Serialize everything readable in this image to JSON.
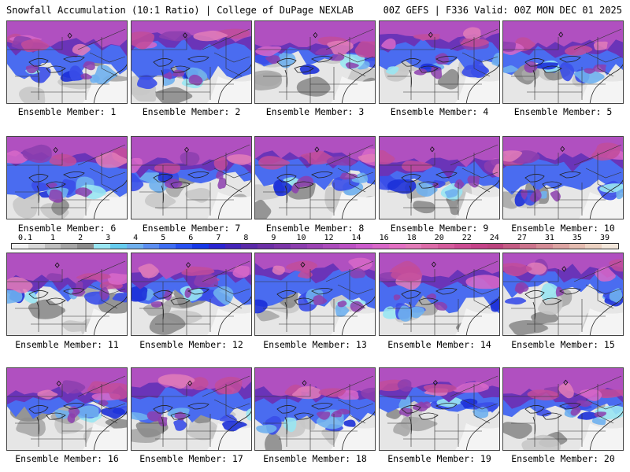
{
  "header": {
    "title_left": "Snowfall Accumulation (10:1 Ratio) | College of DuPage NEXLAB",
    "title_right": "00Z GEFS | F336 Valid: 00Z MON DEC 01 2025"
  },
  "members": [
    {
      "label": "Ensemble Member: 1"
    },
    {
      "label": "Ensemble Member: 2"
    },
    {
      "label": "Ensemble Member: 3"
    },
    {
      "label": "Ensemble Member: 4"
    },
    {
      "label": "Ensemble Member: 5"
    },
    {
      "label": "Ensemble Member: 6"
    },
    {
      "label": "Ensemble Member: 7"
    },
    {
      "label": "Ensemble Member: 8"
    },
    {
      "label": "Ensemble Member: 9"
    },
    {
      "label": "Ensemble Member: 10"
    },
    {
      "label": "Ensemble Member: 11"
    },
    {
      "label": "Ensemble Member: 12"
    },
    {
      "label": "Ensemble Member: 13"
    },
    {
      "label": "Ensemble Member: 14"
    },
    {
      "label": "Ensemble Member: 15"
    },
    {
      "label": "Ensemble Member: 16"
    },
    {
      "label": "Ensemble Member: 17"
    },
    {
      "label": "Ensemble Member: 18"
    },
    {
      "label": "Ensemble Member: 19"
    },
    {
      "label": "Ensemble Member: 20"
    }
  ],
  "colorbar": {
    "labels": [
      "0.1",
      "1",
      "2",
      "3",
      "4",
      "5",
      "6",
      "7",
      "8",
      "9",
      "10",
      "12",
      "14",
      "16",
      "18",
      "20",
      "22",
      "24",
      "27",
      "31",
      "35",
      "39"
    ],
    "colors": [
      "#f2f2f2",
      "#d9d9d9",
      "#bfbfbf",
      "#a6a6a6",
      "#8c8c8c",
      "#99e6f2",
      "#66ccee",
      "#6fb0ee",
      "#5c8ef0",
      "#3f6ef2",
      "#2850f0",
      "#1638e6",
      "#2a24d0",
      "#4424b8",
      "#5a2aa8",
      "#6c30a6",
      "#7c36a8",
      "#8c3eae",
      "#9c44b4",
      "#ac4cbc",
      "#bc52c4",
      "#cc5ccc",
      "#d868c8",
      "#e270c2",
      "#e27cb8",
      "#dc6ca8",
      "#d45c9c",
      "#cc4c92",
      "#c44488",
      "#bc447e",
      "#c45c84",
      "#cc748c",
      "#d48c96",
      "#dca4a2",
      "#e4bcb0",
      "#ecd2c2",
      "#f4e8dc"
    ]
  }
}
